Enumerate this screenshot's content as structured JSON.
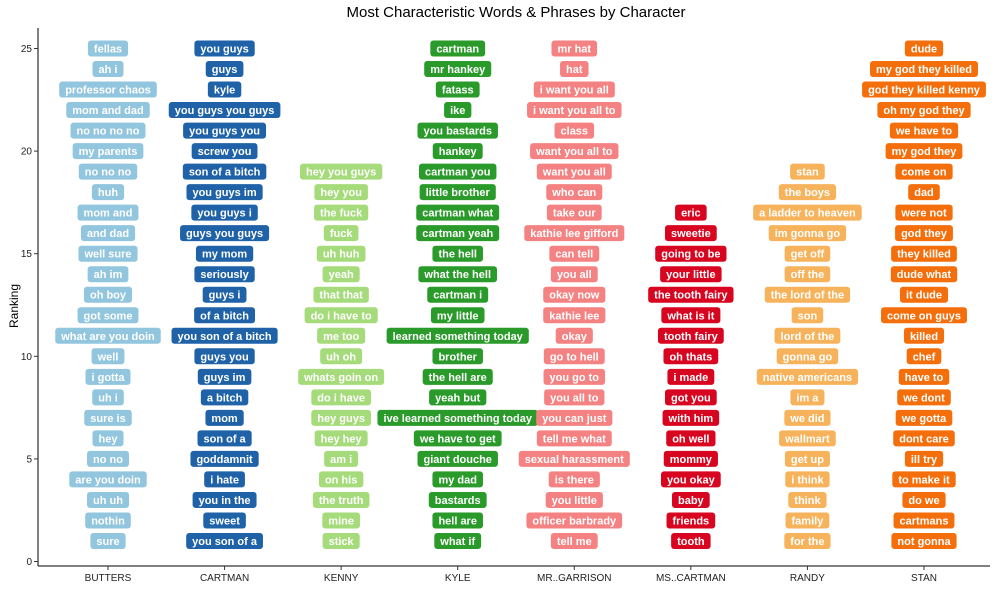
{
  "chart_data": {
    "type": "scatter",
    "title": "Most Characteristic Words & Phrases by Character",
    "xlabel": "",
    "ylabel": "Ranking",
    "ylim": [
      0,
      25
    ],
    "yticks": [
      0,
      5,
      10,
      15,
      20,
      25
    ],
    "grid": false,
    "categories": [
      "BUTTERS",
      "CARTMAN",
      "KENNY",
      "KYLE",
      "MR..GARRISON",
      "MS..CARTMAN",
      "RANDY",
      "STAN"
    ],
    "colors": {
      "BUTTERS": "#92c5de",
      "CARTMAN": "#1f62a8",
      "KENNY": "#a6db7b",
      "KYLE": "#2a9b2a",
      "MR..GARRISON": "#f58282",
      "MS..CARTMAN": "#d7051f",
      "RANDY": "#f6b35c",
      "STAN": "#f46f0c"
    },
    "series": [
      {
        "name": "BUTTERS",
        "points": [
          {
            "y": 1,
            "label": "sure"
          },
          {
            "y": 2,
            "label": "nothin"
          },
          {
            "y": 3,
            "label": "uh uh"
          },
          {
            "y": 4,
            "label": "are you doin"
          },
          {
            "y": 5,
            "label": "no no"
          },
          {
            "y": 6,
            "label": "hey"
          },
          {
            "y": 7,
            "label": "sure is"
          },
          {
            "y": 8,
            "label": "uh i"
          },
          {
            "y": 9,
            "label": "i gotta"
          },
          {
            "y": 10,
            "label": "well"
          },
          {
            "y": 11,
            "label": "what are you doin"
          },
          {
            "y": 12,
            "label": "got some"
          },
          {
            "y": 13,
            "label": "oh boy"
          },
          {
            "y": 14,
            "label": "ah im"
          },
          {
            "y": 15,
            "label": "well sure"
          },
          {
            "y": 16,
            "label": "and dad"
          },
          {
            "y": 17,
            "label": "mom and"
          },
          {
            "y": 18,
            "label": "huh"
          },
          {
            "y": 19,
            "label": "no no no"
          },
          {
            "y": 20,
            "label": "my parents"
          },
          {
            "y": 21,
            "label": "no no no no"
          },
          {
            "y": 22,
            "label": "mom and dad"
          },
          {
            "y": 23,
            "label": "professor chaos"
          },
          {
            "y": 24,
            "label": "ah i"
          },
          {
            "y": 25,
            "label": "fellas"
          }
        ]
      },
      {
        "name": "CARTMAN",
        "points": [
          {
            "y": 1,
            "label": "you son of a"
          },
          {
            "y": 2,
            "label": "sweet"
          },
          {
            "y": 3,
            "label": "you in the"
          },
          {
            "y": 4,
            "label": "i hate"
          },
          {
            "y": 5,
            "label": "goddamnit"
          },
          {
            "y": 6,
            "label": "son of a"
          },
          {
            "y": 7,
            "label": "mom"
          },
          {
            "y": 8,
            "label": "a bitch"
          },
          {
            "y": 9,
            "label": "guys im"
          },
          {
            "y": 10,
            "label": "guys you"
          },
          {
            "y": 11,
            "label": "you son of a bitch"
          },
          {
            "y": 12,
            "label": "of a bitch"
          },
          {
            "y": 13,
            "label": "guys i"
          },
          {
            "y": 14,
            "label": "seriously"
          },
          {
            "y": 15,
            "label": "my mom"
          },
          {
            "y": 16,
            "label": "guys you guys"
          },
          {
            "y": 17,
            "label": "you guys i"
          },
          {
            "y": 18,
            "label": "you guys im"
          },
          {
            "y": 19,
            "label": "son of a bitch"
          },
          {
            "y": 20,
            "label": "screw you"
          },
          {
            "y": 21,
            "label": "you guys you"
          },
          {
            "y": 22,
            "label": "you guys you guys"
          },
          {
            "y": 23,
            "label": "kyle"
          },
          {
            "y": 24,
            "label": "guys"
          },
          {
            "y": 25,
            "label": "you guys"
          }
        ]
      },
      {
        "name": "KENNY",
        "points": [
          {
            "y": 1,
            "label": "stick"
          },
          {
            "y": 2,
            "label": "mine"
          },
          {
            "y": 3,
            "label": "the truth"
          },
          {
            "y": 4,
            "label": "on his"
          },
          {
            "y": 5,
            "label": "am i"
          },
          {
            "y": 6,
            "label": "hey hey"
          },
          {
            "y": 7,
            "label": "hey guys"
          },
          {
            "y": 8,
            "label": "do i have"
          },
          {
            "y": 9,
            "label": "whats goin on"
          },
          {
            "y": 10,
            "label": "uh oh"
          },
          {
            "y": 11,
            "label": "me too"
          },
          {
            "y": 12,
            "label": "do i have to"
          },
          {
            "y": 13,
            "label": "that that"
          },
          {
            "y": 14,
            "label": "yeah"
          },
          {
            "y": 15,
            "label": "uh huh"
          },
          {
            "y": 16,
            "label": "fuck"
          },
          {
            "y": 17,
            "label": "the fuck"
          },
          {
            "y": 18,
            "label": "hey you"
          },
          {
            "y": 19,
            "label": "hey you guys"
          }
        ]
      },
      {
        "name": "KYLE",
        "points": [
          {
            "y": 1,
            "label": "what if"
          },
          {
            "y": 2,
            "label": "hell are"
          },
          {
            "y": 3,
            "label": "bastards"
          },
          {
            "y": 4,
            "label": "my dad"
          },
          {
            "y": 5,
            "label": "giant douche"
          },
          {
            "y": 6,
            "label": "we have to get"
          },
          {
            "y": 7,
            "label": "ive learned something today"
          },
          {
            "y": 8,
            "label": "yeah but"
          },
          {
            "y": 9,
            "label": "the hell are"
          },
          {
            "y": 10,
            "label": "brother"
          },
          {
            "y": 11,
            "label": "learned something today"
          },
          {
            "y": 12,
            "label": "my little"
          },
          {
            "y": 13,
            "label": "cartman i"
          },
          {
            "y": 14,
            "label": "what the hell"
          },
          {
            "y": 15,
            "label": "the hell"
          },
          {
            "y": 16,
            "label": "cartman yeah"
          },
          {
            "y": 17,
            "label": "cartman what"
          },
          {
            "y": 18,
            "label": "little brother"
          },
          {
            "y": 19,
            "label": "cartman you"
          },
          {
            "y": 20,
            "label": "hankey"
          },
          {
            "y": 21,
            "label": "you bastards"
          },
          {
            "y": 22,
            "label": "ike"
          },
          {
            "y": 23,
            "label": "fatass"
          },
          {
            "y": 24,
            "label": "mr hankey"
          },
          {
            "y": 25,
            "label": "cartman"
          }
        ]
      },
      {
        "name": "MR..GARRISON",
        "points": [
          {
            "y": 1,
            "label": "tell me"
          },
          {
            "y": 2,
            "label": "officer barbrady"
          },
          {
            "y": 3,
            "label": "you little"
          },
          {
            "y": 4,
            "label": "is there"
          },
          {
            "y": 5,
            "label": "sexual harassment"
          },
          {
            "y": 6,
            "label": "tell me what"
          },
          {
            "y": 7,
            "label": "you can just"
          },
          {
            "y": 8,
            "label": "you all to"
          },
          {
            "y": 9,
            "label": "you go to"
          },
          {
            "y": 10,
            "label": "go to hell"
          },
          {
            "y": 11,
            "label": "okay"
          },
          {
            "y": 12,
            "label": "kathie lee"
          },
          {
            "y": 13,
            "label": "okay now"
          },
          {
            "y": 14,
            "label": "you all"
          },
          {
            "y": 15,
            "label": "can tell"
          },
          {
            "y": 16,
            "label": "kathie lee gifford"
          },
          {
            "y": 17,
            "label": "take our"
          },
          {
            "y": 18,
            "label": "who can"
          },
          {
            "y": 19,
            "label": "want you all"
          },
          {
            "y": 20,
            "label": "want you all to"
          },
          {
            "y": 21,
            "label": "class"
          },
          {
            "y": 22,
            "label": "i want you all to"
          },
          {
            "y": 23,
            "label": "i want you all"
          },
          {
            "y": 24,
            "label": "hat"
          },
          {
            "y": 25,
            "label": "mr hat"
          }
        ]
      },
      {
        "name": "MS..CARTMAN",
        "points": [
          {
            "y": 1,
            "label": "tooth"
          },
          {
            "y": 2,
            "label": "friends"
          },
          {
            "y": 3,
            "label": "baby"
          },
          {
            "y": 4,
            "label": "you okay"
          },
          {
            "y": 5,
            "label": "mommy"
          },
          {
            "y": 6,
            "label": "oh well"
          },
          {
            "y": 7,
            "label": "with him"
          },
          {
            "y": 8,
            "label": "got you"
          },
          {
            "y": 9,
            "label": "i made"
          },
          {
            "y": 10,
            "label": "oh thats"
          },
          {
            "y": 11,
            "label": "tooth fairy"
          },
          {
            "y": 12,
            "label": "what is it"
          },
          {
            "y": 13,
            "label": "the tooth fairy"
          },
          {
            "y": 14,
            "label": "your little"
          },
          {
            "y": 15,
            "label": "going to be"
          },
          {
            "y": 16,
            "label": "sweetie"
          },
          {
            "y": 17,
            "label": "eric"
          }
        ]
      },
      {
        "name": "RANDY",
        "points": [
          {
            "y": 1,
            "label": "for the"
          },
          {
            "y": 2,
            "label": "family"
          },
          {
            "y": 3,
            "label": "think"
          },
          {
            "y": 4,
            "label": "i think"
          },
          {
            "y": 5,
            "label": "get up"
          },
          {
            "y": 6,
            "label": "wallmart"
          },
          {
            "y": 7,
            "label": "we did"
          },
          {
            "y": 8,
            "label": "im a"
          },
          {
            "y": 9,
            "label": "native americans"
          },
          {
            "y": 10,
            "label": "gonna go"
          },
          {
            "y": 11,
            "label": "lord of the"
          },
          {
            "y": 12,
            "label": "son"
          },
          {
            "y": 13,
            "label": "the lord of the"
          },
          {
            "y": 14,
            "label": "off the"
          },
          {
            "y": 15,
            "label": "get off"
          },
          {
            "y": 16,
            "label": "im gonna go"
          },
          {
            "y": 17,
            "label": "a ladder to heaven"
          },
          {
            "y": 18,
            "label": "the boys"
          },
          {
            "y": 19,
            "label": "stan"
          }
        ]
      },
      {
        "name": "STAN",
        "points": [
          {
            "y": 1,
            "label": "not gonna"
          },
          {
            "y": 2,
            "label": "cartmans"
          },
          {
            "y": 3,
            "label": "do we"
          },
          {
            "y": 4,
            "label": "to make it"
          },
          {
            "y": 5,
            "label": "ill try"
          },
          {
            "y": 6,
            "label": "dont care"
          },
          {
            "y": 7,
            "label": "we gotta"
          },
          {
            "y": 8,
            "label": "we dont"
          },
          {
            "y": 9,
            "label": "have to"
          },
          {
            "y": 10,
            "label": "chef"
          },
          {
            "y": 11,
            "label": "killed"
          },
          {
            "y": 12,
            "label": "come on guys"
          },
          {
            "y": 13,
            "label": "it dude"
          },
          {
            "y": 14,
            "label": "dude what"
          },
          {
            "y": 15,
            "label": "they killed"
          },
          {
            "y": 16,
            "label": "god they"
          },
          {
            "y": 17,
            "label": "were not"
          },
          {
            "y": 18,
            "label": "dad"
          },
          {
            "y": 19,
            "label": "come on"
          },
          {
            "y": 20,
            "label": "my god they"
          },
          {
            "y": 21,
            "label": "we have to"
          },
          {
            "y": 22,
            "label": "oh my god they"
          },
          {
            "y": 23,
            "label": "god they killed kenny"
          },
          {
            "y": 24,
            "label": "my god they killed"
          },
          {
            "y": 25,
            "label": "dude"
          }
        ]
      }
    ]
  }
}
